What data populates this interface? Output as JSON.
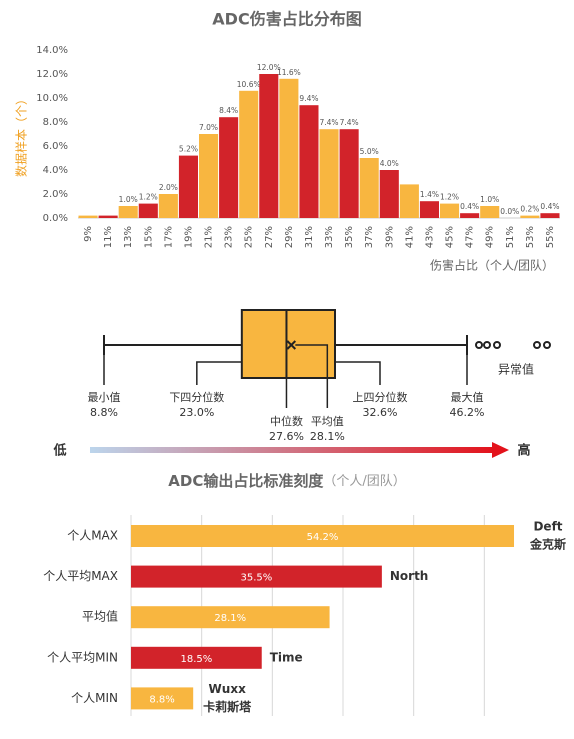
{
  "chart_data": [
    {
      "type": "bar",
      "title": "ADC伤害占比分布图",
      "x_label": "伤害占比（个人/团队）",
      "y_label": "数据样本（个）",
      "categories": [
        "9%",
        "11%",
        "13%",
        "15%",
        "17%",
        "19%",
        "21%",
        "23%",
        "25%",
        "27%",
        "29%",
        "31%",
        "33%",
        "35%",
        "37%",
        "39%",
        "41%",
        "43%",
        "45%",
        "47%",
        "49%",
        "51%",
        "53%",
        "55%"
      ],
      "values": [
        0.2,
        0.2,
        1.0,
        1.2,
        2.0,
        5.2,
        7.0,
        8.4,
        10.6,
        12.0,
        11.6,
        9.4,
        7.4,
        7.4,
        5.0,
        4.0,
        2.8,
        1.4,
        1.2,
        0.4,
        1.0,
        0.0,
        0.2,
        0.4
      ],
      "value_labels": [
        null,
        null,
        "1.0%",
        "1.2%",
        "2.0%",
        "5.2%",
        "7.0%",
        "8.4%",
        "10.6%",
        "12.0%",
        "11.6%",
        "9.4%",
        "7.4%",
        "7.4%",
        "5.0%",
        "4.0%",
        null,
        "1.4%",
        "1.2%",
        "0.4%",
        "1.0%",
        "0.0%",
        "0.2%",
        "0.4%"
      ],
      "colors": [
        "#f8b640",
        "#d2232a"
      ],
      "ylim": [
        0,
        14
      ],
      "yticks": [
        {
          "value": 0,
          "label": "0.0%"
        },
        {
          "value": 2,
          "label": "2.0%"
        },
        {
          "value": 4,
          "label": "4.0%"
        },
        {
          "value": 6,
          "label": "6.0%"
        },
        {
          "value": 8,
          "label": "8.0%"
        },
        {
          "value": 10,
          "label": "10.0%"
        },
        {
          "value": 12,
          "label": "12.0%"
        },
        {
          "value": 14,
          "label": "14.0%"
        }
      ],
      "grid": false
    },
    {
      "type": "box",
      "labels": [
        "最小值",
        "下四分位数",
        "中位数",
        "平均值",
        "上四分位数",
        "最大值"
      ],
      "values": [
        8.8,
        23.0,
        27.6,
        28.1,
        32.6,
        46.2
      ],
      "value_labels": [
        "8.8%",
        "23.0%",
        "27.6%",
        "28.1%",
        "32.6%",
        "46.2%"
      ],
      "color": "#f8b640",
      "outlier_label": "异常值",
      "scale_low": "低",
      "scale_high": "高"
    },
    {
      "type": "hbar",
      "title": "ADC输出占比标准刻度",
      "subtitle": "（个人/团队）",
      "categories": [
        "个人MAX",
        "个人平均MAX",
        "平均值",
        "个人平均MIN",
        "个人MIN"
      ],
      "values": [
        54.2,
        35.5,
        28.1,
        18.5,
        8.8
      ],
      "value_labels": [
        "54.2%",
        "35.5%",
        "28.1%",
        "18.5%",
        "8.8%"
      ],
      "colors": [
        "#f8b640",
        "#d2232a",
        "#f8b640",
        "#d2232a",
        "#f8b640"
      ],
      "annotations": [
        [
          "Deft",
          "金克斯"
        ],
        [
          "North"
        ],
        null,
        [
          "Time"
        ],
        [
          "Wuxx",
          "卡莉斯塔"
        ]
      ],
      "xlim": [
        0,
        60
      ],
      "xticks": [
        0,
        10,
        20,
        30,
        40,
        50
      ],
      "grid": true
    }
  ]
}
